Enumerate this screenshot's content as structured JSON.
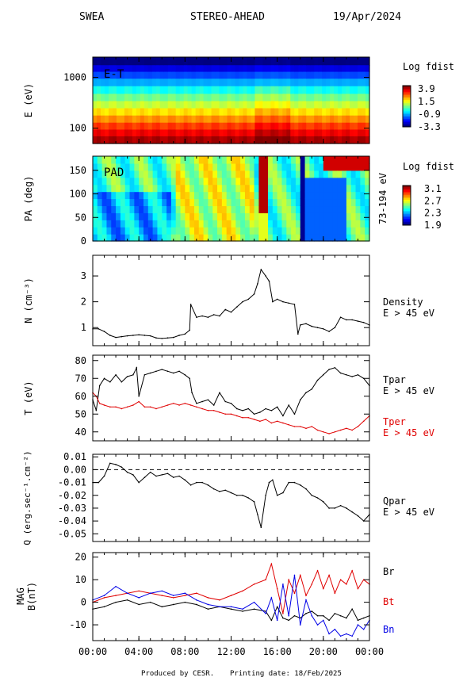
{
  "header": {
    "instrument": "SWEA",
    "spacecraft": "STEREO-AHEAD",
    "date": "19/Apr/2024"
  },
  "footer": {
    "produced_by": "Produced by CESR.",
    "printing_date": "Printing date: 18/Feb/2025"
  },
  "colors": {
    "black": "#000000",
    "red": "#e00000",
    "blue": "#0000e6",
    "axis": "#000000"
  },
  "x_axis": {
    "range": [
      0,
      24
    ],
    "tick_labels": [
      "00:00",
      "04:00",
      "08:00",
      "12:00",
      "16:00",
      "20:00",
      "00:00"
    ],
    "tick_hours": [
      0,
      4,
      8,
      12,
      16,
      20,
      24
    ]
  },
  "chart_data": [
    {
      "type": "heatmap",
      "panel": "E-T",
      "label": "E-T",
      "ylabel": "E (eV)",
      "yscale": "log",
      "ylim": [
        50,
        2500
      ],
      "y_ticks": [
        100,
        1000
      ],
      "y_tick_labels": [
        "100",
        "1000"
      ],
      "colorbar": {
        "title": "Log fdist",
        "range": [
          -3.3,
          3.9
        ],
        "tick_labels": [
          "3.9",
          "1.5",
          "-0.9",
          "-3.3"
        ]
      },
      "description_bands_eV": [
        2000,
        1500,
        1100,
        800,
        560,
        400,
        290,
        210,
        150,
        110,
        80,
        60
      ],
      "band_values": [
        -3.3,
        -2.6,
        -1.9,
        -1.2,
        -0.5,
        0.2,
        0.8,
        1.4,
        2.0,
        2.6,
        3.1,
        3.6
      ]
    },
    {
      "type": "heatmap",
      "panel": "PAD",
      "label": "PAD",
      "ylabel": "PA (deg)",
      "ylim": [
        0,
        180
      ],
      "y_ticks": [
        0,
        50,
        100,
        150
      ],
      "y_tick_labels": [
        "0",
        "50",
        "100",
        "150"
      ],
      "right_label": "73-194 eV",
      "colorbar": {
        "title": "Log fdist",
        "range": [
          1.9,
          3.1
        ],
        "tick_labels": [
          "3.1",
          "2.7",
          "2.3",
          "1.9"
        ]
      }
    },
    {
      "type": "line",
      "panel": "Density",
      "ylabel": "N (cm⁻³)",
      "ylim": [
        0.3,
        3.8
      ],
      "y_ticks": [
        1,
        2,
        3
      ],
      "y_tick_labels": [
        "1",
        "2",
        "3"
      ],
      "series": [
        {
          "name": "Density",
          "name_line2": "E > 45 eV",
          "color": "black",
          "x": [
            0,
            0.5,
            1,
            1.5,
            2,
            2.5,
            3,
            3.5,
            4,
            4.5,
            5,
            5.5,
            6,
            6.5,
            7,
            7.5,
            8,
            8.4,
            8.5,
            9,
            9.5,
            10,
            10.5,
            11,
            11.5,
            12,
            12.5,
            13,
            13.5,
            14,
            14.3,
            14.6,
            15,
            15.3,
            15.6,
            16,
            16.5,
            17,
            17.5,
            17.8,
            18,
            18.5,
            19,
            19.5,
            20,
            20.5,
            21,
            21.5,
            22,
            22.5,
            23,
            23.5,
            24
          ],
          "y": [
            0.95,
            0.95,
            0.85,
            0.7,
            0.62,
            0.65,
            0.68,
            0.7,
            0.72,
            0.7,
            0.68,
            0.6,
            0.58,
            0.6,
            0.62,
            0.7,
            0.75,
            0.9,
            1.9,
            1.4,
            1.45,
            1.4,
            1.5,
            1.45,
            1.7,
            1.6,
            1.8,
            2.0,
            2.1,
            2.3,
            2.7,
            3.25,
            3.0,
            2.8,
            2.0,
            2.1,
            2.0,
            1.95,
            1.9,
            0.75,
            1.1,
            1.15,
            1.05,
            1.0,
            0.95,
            0.85,
            1.0,
            1.4,
            1.3,
            1.3,
            1.25,
            1.2,
            1.1
          ]
        }
      ]
    },
    {
      "type": "line",
      "panel": "Temperature",
      "ylabel": "T (eV)",
      "ylim": [
        35,
        83
      ],
      "y_ticks": [
        40,
        50,
        60,
        70,
        80
      ],
      "y_tick_labels": [
        "40",
        "50",
        "60",
        "70",
        "80"
      ],
      "series": [
        {
          "name": "Tpar",
          "name_line2": "E > 45 eV",
          "color": "black",
          "x": [
            0,
            0.3,
            0.6,
            1,
            1.5,
            2,
            2.5,
            3,
            3.5,
            3.8,
            4,
            4.5,
            5,
            5.5,
            6,
            6.5,
            7,
            7.5,
            8,
            8.4,
            8.6,
            9,
            9.5,
            10,
            10.5,
            11,
            11.5,
            12,
            12.5,
            13,
            13.5,
            14,
            14.5,
            15,
            15.5,
            16,
            16.5,
            17,
            17.5,
            18,
            18.5,
            19,
            19.5,
            20,
            20.5,
            21,
            21.5,
            22,
            22.5,
            23,
            23.5,
            24
          ],
          "y": [
            58,
            52,
            66,
            70,
            68,
            72,
            68,
            71,
            72,
            76,
            60,
            72,
            73,
            74,
            75,
            74,
            73,
            74,
            72,
            70,
            62,
            56,
            57,
            58,
            55,
            62,
            57,
            56,
            53,
            52,
            53,
            50,
            51,
            53,
            52,
            54,
            49,
            55,
            50,
            58,
            62,
            64,
            69,
            72,
            75,
            76,
            73,
            72,
            71,
            72,
            70,
            66
          ]
        },
        {
          "name": "Tper",
          "name_line2": "E > 45 eV",
          "color": "red",
          "x": [
            0,
            0.3,
            0.6,
            1,
            1.5,
            2,
            2.5,
            3,
            3.5,
            4,
            4.5,
            5,
            5.5,
            6,
            6.5,
            7,
            7.5,
            8,
            8.5,
            9,
            9.5,
            10,
            10.5,
            11,
            11.5,
            12,
            12.5,
            13,
            13.5,
            14,
            14.5,
            15,
            15.5,
            16,
            16.5,
            17,
            17.5,
            18,
            18.5,
            19,
            19.5,
            20,
            20.5,
            21,
            21.5,
            22,
            22.5,
            23,
            23.5,
            24
          ],
          "y": [
            62,
            60,
            56,
            55,
            54,
            54,
            53,
            54,
            55,
            57,
            54,
            54,
            53,
            54,
            55,
            56,
            55,
            56,
            55,
            54,
            53,
            52,
            52,
            51,
            50,
            50,
            49,
            48,
            48,
            47,
            46,
            47,
            45,
            46,
            45,
            44,
            43,
            43,
            42,
            43,
            41,
            40,
            39,
            40,
            41,
            42,
            41,
            43,
            46,
            49
          ]
        }
      ]
    },
    {
      "type": "line",
      "panel": "Heat flux",
      "ylabel": "Q (erg.sec⁻¹.cm⁻²)",
      "ylim": [
        -0.056,
        0.012
      ],
      "y_ticks": [
        0.01,
        0.0,
        -0.01,
        -0.02,
        -0.03,
        -0.04,
        -0.05
      ],
      "y_tick_labels": [
        "0.01",
        "0.00",
        "-0.01",
        "-0.02",
        "-0.03",
        "-0.04",
        "-0.05"
      ],
      "zero_line": true,
      "series": [
        {
          "name": "Qpar",
          "name_line2": "E > 45 eV",
          "color": "black",
          "x": [
            0,
            0.5,
            1,
            1.5,
            2,
            2.5,
            3,
            3.5,
            4,
            4.5,
            5,
            5.5,
            6,
            6.5,
            7,
            7.5,
            8,
            8.5,
            9,
            9.5,
            10,
            10.5,
            11,
            11.5,
            12,
            12.5,
            13,
            13.5,
            14,
            14.3,
            14.6,
            15,
            15.3,
            15.6,
            16,
            16.5,
            17,
            17.5,
            18,
            18.5,
            19,
            19.5,
            20,
            20.5,
            21,
            21.5,
            22,
            22.5,
            23,
            23.5,
            24
          ],
          "y": [
            -0.01,
            -0.01,
            -0.005,
            0.005,
            0.004,
            0.002,
            -0.002,
            -0.004,
            -0.01,
            -0.006,
            -0.002,
            -0.005,
            -0.004,
            -0.003,
            -0.006,
            -0.005,
            -0.008,
            -0.012,
            -0.01,
            -0.01,
            -0.012,
            -0.015,
            -0.017,
            -0.016,
            -0.018,
            -0.02,
            -0.02,
            -0.022,
            -0.025,
            -0.035,
            -0.045,
            -0.02,
            -0.01,
            -0.008,
            -0.02,
            -0.018,
            -0.01,
            -0.01,
            -0.012,
            -0.015,
            -0.02,
            -0.022,
            -0.025,
            -0.03,
            -0.03,
            -0.028,
            -0.03,
            -0.033,
            -0.036,
            -0.04,
            -0.035
          ]
        }
      ]
    },
    {
      "type": "line",
      "panel": "Magnetic field",
      "ylabel": "MAG B(nT)",
      "ylim": [
        -17,
        22
      ],
      "y_ticks": [
        20,
        10,
        0,
        -10
      ],
      "y_tick_labels": [
        "20",
        "10",
        "0",
        "-10"
      ],
      "series": [
        {
          "name": "Br",
          "color": "black",
          "x": [
            0,
            1,
            2,
            3,
            4,
            5,
            6,
            7,
            8,
            9,
            10,
            11,
            12,
            13,
            14,
            15,
            15.5,
            16,
            16.5,
            17,
            17.5,
            18,
            18.5,
            19,
            19.5,
            20,
            20.5,
            21,
            21.5,
            22,
            22.5,
            23,
            23.5,
            24
          ],
          "y": [
            -3,
            -2,
            0,
            1,
            -1,
            0,
            -2,
            -1,
            0,
            -1,
            -3,
            -2,
            -3,
            -4,
            -3,
            -4,
            -8,
            -2,
            -7,
            -8,
            -6,
            -7,
            -5,
            -4,
            -6,
            -6,
            -8,
            -5,
            -6,
            -7,
            -3,
            -8,
            -7,
            -6
          ]
        },
        {
          "name": "Bt",
          "color": "red",
          "x": [
            0,
            1,
            2,
            3,
            4,
            5,
            6,
            7,
            8,
            9,
            10,
            11,
            12,
            13,
            14,
            15,
            15.5,
            16,
            16.5,
            17,
            17.5,
            18,
            18.5,
            19,
            19.5,
            20,
            20.5,
            21,
            21.5,
            22,
            22.5,
            23,
            23.5,
            24
          ],
          "y": [
            0,
            2,
            3,
            4,
            5,
            4,
            3,
            2,
            3,
            4,
            2,
            1,
            3,
            5,
            8,
            10,
            17,
            6,
            -5,
            10,
            4,
            12,
            3,
            8,
            14,
            6,
            12,
            4,
            10,
            8,
            14,
            6,
            10,
            8
          ]
        },
        {
          "name": "Bn",
          "color": "blue",
          "x": [
            0,
            1,
            2,
            3,
            4,
            5,
            6,
            7,
            8,
            9,
            10,
            11,
            12,
            13,
            14,
            15,
            15.5,
            16,
            16.5,
            17,
            17.5,
            18,
            18.5,
            19,
            19.5,
            20,
            20.5,
            21,
            21.5,
            22,
            22.5,
            23,
            23.5,
            24
          ],
          "y": [
            1,
            3,
            7,
            4,
            2,
            4,
            5,
            3,
            4,
            1,
            -1,
            -2,
            -2,
            -3,
            0,
            -5,
            2,
            -8,
            8,
            -6,
            12,
            -10,
            1,
            -6,
            -10,
            -8,
            -14,
            -12,
            -15,
            -14,
            -15,
            -10,
            -12,
            -8
          ]
        }
      ]
    }
  ]
}
